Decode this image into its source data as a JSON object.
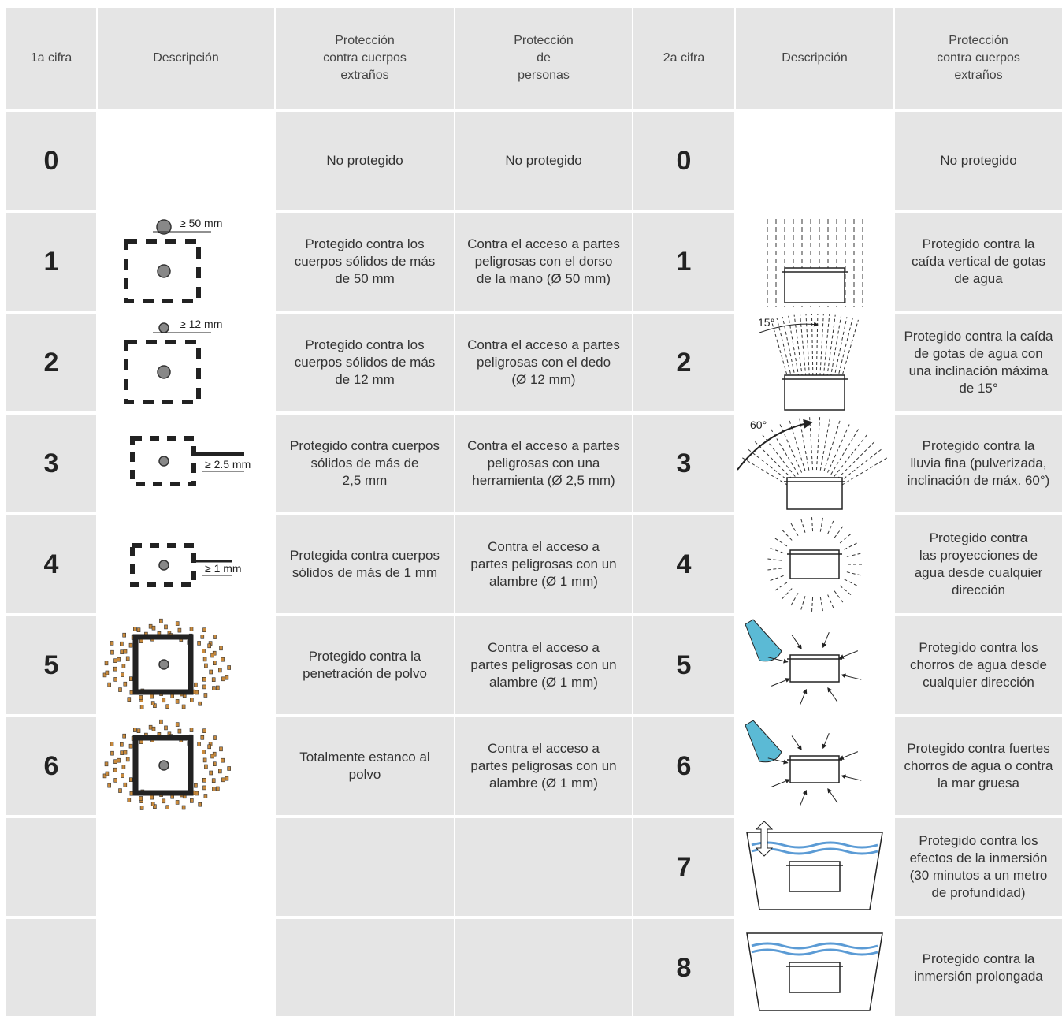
{
  "header": [
    "1a cifra",
    "Descripción",
    "Protección\ncontra cuerpos\nextraños",
    "Protección\nde\npersonas",
    "2a cifra",
    "Descripción",
    "Protección\ncontra cuerpos\nextraños"
  ],
  "rows": [
    {
      "digit1": "0",
      "foreign1": "No protegido",
      "persons": "No protegido",
      "digit2": "0",
      "foreign2": "No protegido"
    },
    {
      "digit1": "1",
      "dim": "≥ 50 mm",
      "foreign1": "Protegido contra los\ncuerpos sólidos de más\nde 50 mm",
      "persons": "Contra el acceso a partes\npeligrosas con el dorso\nde la mano (Ø 50 mm)",
      "digit2": "1",
      "foreign2": "Protegido contra la\ncaída vertical de gotas\nde agua"
    },
    {
      "digit1": "2",
      "dim": "≥ 12 mm",
      "foreign1": "Protegido contra los\ncuerpos sólidos de más\nde 12 mm",
      "persons": "Contra el acceso a partes\npeligrosas con el dedo\n(Ø 12 mm)",
      "digit2": "2",
      "angle": "15°",
      "foreign2": "Protegido contra la caída\nde gotas de agua con\nuna inclinación máxima\nde 15°"
    },
    {
      "digit1": "3",
      "dim": "≥ 2.5 mm",
      "foreign1": "Protegido contra cuerpos\nsólidos de más de\n2,5 mm",
      "persons": "Contra el acceso a partes\npeligrosas con una\nherramienta (Ø 2,5 mm)",
      "digit2": "3",
      "angle": "60°",
      "foreign2": "Protegido contra la\nlluvia fina (pulverizada,\ninclinación de máx. 60°)"
    },
    {
      "digit1": "4",
      "dim": "≥ 1 mm",
      "foreign1": "Protegida contra cuerpos\nsólidos de más de 1 mm",
      "persons": "Contra el acceso a\npartes peligrosas con un\nalambre (Ø 1 mm)",
      "digit2": "4",
      "foreign2": "Protegido contra\nlas proyecciones de\nagua desde cualquier\ndirección"
    },
    {
      "digit1": "5",
      "foreign1": "Protegido contra la\npenetración de polvo",
      "persons": "Contra el acceso a\npartes peligrosas con un\nalambre (Ø 1 mm)",
      "digit2": "5",
      "foreign2": "Protegido contra los\nchorros de agua desde\ncualquier dirección"
    },
    {
      "digit1": "6",
      "foreign1": "Totalmente estanco al\npolvo",
      "persons": "Contra el acceso a\npartes peligrosas con un\nalambre (Ø 1 mm)",
      "digit2": "6",
      "foreign2": "Protegido contra fuertes\nchorros de agua o contra\nla mar gruesa"
    },
    {
      "digit2": "7",
      "foreign2": "Protegido contra los\nefectos de la inmersión\n(30 minutos a un metro\nde profundidad)"
    },
    {
      "digit2": "8",
      "foreign2": "Protegido contra la\ninmersión prolongada"
    }
  ]
}
